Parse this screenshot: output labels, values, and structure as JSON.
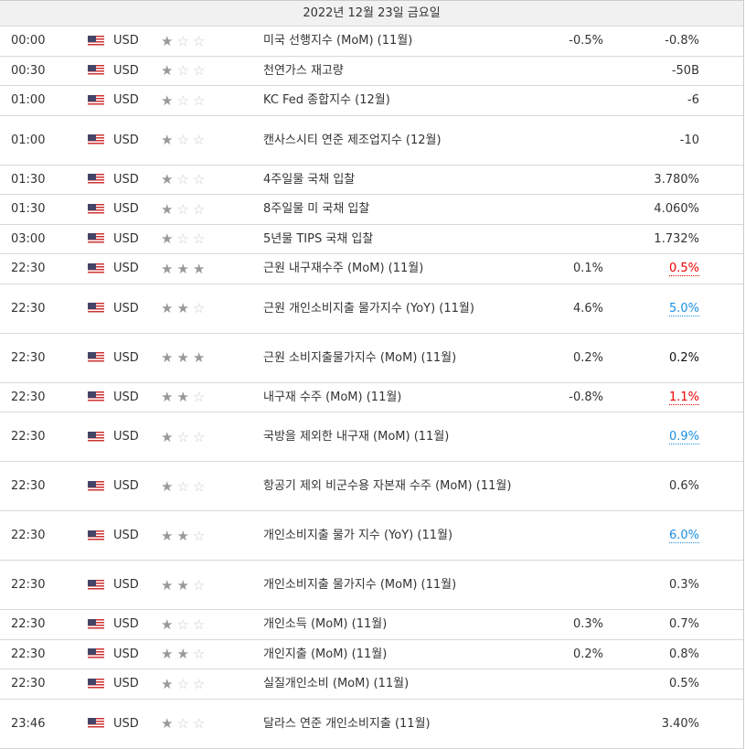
{
  "date_header": "2022년 12월 23일 금요일",
  "colors": {
    "up": "#e00000",
    "down": "#1a8fe0"
  },
  "rows": [
    {
      "time": "00:00",
      "currency": "USD",
      "stars": 1,
      "event": "미국 선행지수 (MoM) (11월)",
      "actual": "-0.5%",
      "forecast": "-0.8%",
      "tone": ""
    },
    {
      "time": "00:30",
      "currency": "USD",
      "stars": 1,
      "event": "천연가스 재고량",
      "actual": "",
      "forecast": "-50B",
      "tone": ""
    },
    {
      "time": "01:00",
      "currency": "USD",
      "stars": 1,
      "event": "KC Fed 종합지수 (12월)",
      "actual": "",
      "forecast": "-6",
      "tone": ""
    },
    {
      "time": "01:00",
      "currency": "USD",
      "stars": 1,
      "event": "캔사스시티 연준 제조업지수 (12월)",
      "actual": "",
      "forecast": "-10",
      "tone": ""
    },
    {
      "time": "01:30",
      "currency": "USD",
      "stars": 1,
      "event": "4주일물 국채 입찰",
      "actual": "",
      "forecast": "3.780%",
      "tone": ""
    },
    {
      "time": "01:30",
      "currency": "USD",
      "stars": 1,
      "event": "8주일물 미 국채 입찰",
      "actual": "",
      "forecast": "4.060%",
      "tone": ""
    },
    {
      "time": "03:00",
      "currency": "USD",
      "stars": 1,
      "event": "5년물 TIPS 국채 입찰",
      "actual": "",
      "forecast": "1.732%",
      "tone": ""
    },
    {
      "time": "22:30",
      "currency": "USD",
      "stars": 3,
      "event": "근원 내구재수주 (MoM) (11월)",
      "actual": "0.1%",
      "forecast": "0.5%",
      "tone": "red"
    },
    {
      "time": "22:30",
      "currency": "USD",
      "stars": 2,
      "event": "근원 개인소비지출 물가지수 (YoY) (11월)",
      "actual": "4.6%",
      "forecast": "5.0%",
      "tone": "blue"
    },
    {
      "time": "22:30",
      "currency": "USD",
      "stars": 3,
      "event": "근원 소비지출물가지수 (MoM) (11월)",
      "actual": "0.2%",
      "forecast": "0.2%",
      "tone": ""
    },
    {
      "time": "22:30",
      "currency": "USD",
      "stars": 2,
      "event": "내구재 수주 (MoM) (11월)",
      "actual": "-0.8%",
      "forecast": "1.1%",
      "tone": "red"
    },
    {
      "time": "22:30",
      "currency": "USD",
      "stars": 1,
      "event": "국방을 제외한 내구재 (MoM) (11월)",
      "actual": "",
      "forecast": "0.9%",
      "tone": "blue"
    },
    {
      "time": "22:30",
      "currency": "USD",
      "stars": 1,
      "event": "항공기 제외 비군수용 자본재 수주 (MoM) (11월)",
      "actual": "",
      "forecast": "0.6%",
      "tone": ""
    },
    {
      "time": "22:30",
      "currency": "USD",
      "stars": 2,
      "event": "개인소비지출 물가 지수 (YoY) (11월)",
      "actual": "",
      "forecast": "6.0%",
      "tone": "blue"
    },
    {
      "time": "22:30",
      "currency": "USD",
      "stars": 2,
      "event": "개인소비지출 물가지수 (MoM) (11월)",
      "actual": "",
      "forecast": "0.3%",
      "tone": ""
    },
    {
      "time": "22:30",
      "currency": "USD",
      "stars": 1,
      "event": "개인소득 (MoM) (11월)",
      "actual": "0.3%",
      "forecast": "0.7%",
      "tone": ""
    },
    {
      "time": "22:30",
      "currency": "USD",
      "stars": 2,
      "event": "개인지출 (MoM) (11월)",
      "actual": "0.2%",
      "forecast": "0.8%",
      "tone": ""
    },
    {
      "time": "22:30",
      "currency": "USD",
      "stars": 1,
      "event": "실질개인소비 (MoM) (11월)",
      "actual": "",
      "forecast": "0.5%",
      "tone": ""
    },
    {
      "time": "23:46",
      "currency": "USD",
      "stars": 1,
      "event": "달라스 연준 개인소비지출 (11월)",
      "actual": "",
      "forecast": "3.40%",
      "tone": ""
    }
  ]
}
